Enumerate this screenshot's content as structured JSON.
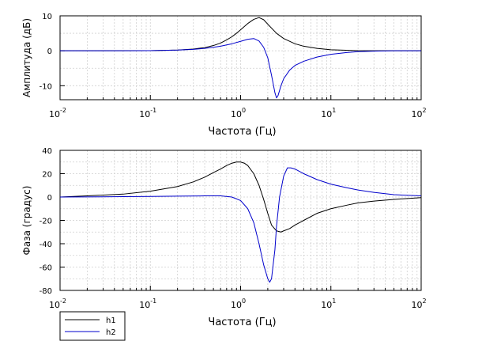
{
  "chart_data": [
    {
      "type": "line",
      "xscale": "log",
      "xlim": [
        0.01,
        100
      ],
      "ylim": [
        -14,
        10
      ],
      "xlabel": "Частота (Гц)",
      "ylabel": "Амплитуда (дБ)",
      "grid": true,
      "xticks": [
        {
          "value": 0.01,
          "base": "10",
          "exp": "-2"
        },
        {
          "value": 0.1,
          "base": "10",
          "exp": "-1"
        },
        {
          "value": 1,
          "base": "10",
          "exp": "0"
        },
        {
          "value": 10,
          "base": "10",
          "exp": "1"
        },
        {
          "value": 100,
          "base": "10",
          "exp": "2"
        }
      ],
      "yticks": [
        10,
        0,
        -10
      ],
      "series": [
        {
          "name": "h1",
          "color": "#000000",
          "points": [
            [
              0.01,
              0
            ],
            [
              0.03,
              0
            ],
            [
              0.1,
              0.05
            ],
            [
              0.2,
              0.2
            ],
            [
              0.3,
              0.5
            ],
            [
              0.4,
              0.9
            ],
            [
              0.5,
              1.5
            ],
            [
              0.6,
              2.2
            ],
            [
              0.7,
              3.1
            ],
            [
              0.8,
              4.0
            ],
            [
              0.9,
              5.0
            ],
            [
              1.0,
              6.0
            ],
            [
              1.2,
              7.8
            ],
            [
              1.4,
              9.0
            ],
            [
              1.6,
              9.5
            ],
            [
              1.8,
              8.9
            ],
            [
              2.0,
              7.6
            ],
            [
              2.5,
              5.0
            ],
            [
              3.0,
              3.5
            ],
            [
              4.0,
              2.0
            ],
            [
              5.0,
              1.3
            ],
            [
              7.0,
              0.7
            ],
            [
              10,
              0.3
            ],
            [
              20,
              0.05
            ],
            [
              50,
              0
            ],
            [
              100,
              0
            ]
          ]
        },
        {
          "name": "h2",
          "color": "#0000cc",
          "points": [
            [
              0.01,
              0
            ],
            [
              0.05,
              0
            ],
            [
              0.1,
              0.05
            ],
            [
              0.2,
              0.2
            ],
            [
              0.3,
              0.4
            ],
            [
              0.4,
              0.7
            ],
            [
              0.5,
              1.0
            ],
            [
              0.6,
              1.3
            ],
            [
              0.8,
              2.0
            ],
            [
              1.0,
              2.7
            ],
            [
              1.2,
              3.3
            ],
            [
              1.4,
              3.5
            ],
            [
              1.6,
              2.8
            ],
            [
              1.8,
              1.0
            ],
            [
              2.0,
              -2.0
            ],
            [
              2.2,
              -7.0
            ],
            [
              2.4,
              -12.0
            ],
            [
              2.5,
              -13.5
            ],
            [
              2.6,
              -12.8
            ],
            [
              2.8,
              -10.0
            ],
            [
              3.0,
              -8.0
            ],
            [
              3.5,
              -5.5
            ],
            [
              4.0,
              -4.2
            ],
            [
              5.0,
              -3.0
            ],
            [
              7.0,
              -1.8
            ],
            [
              10,
              -1.0
            ],
            [
              15,
              -0.5
            ],
            [
              20,
              -0.25
            ],
            [
              30,
              -0.1
            ],
            [
              50,
              0
            ],
            [
              100,
              0
            ]
          ]
        }
      ]
    },
    {
      "type": "line",
      "xscale": "log",
      "xlim": [
        0.01,
        100
      ],
      "ylim": [
        -80,
        40
      ],
      "xlabel": "Частота (Гц)",
      "ylabel": "Фаза (градус)",
      "grid": true,
      "xticks": [
        {
          "value": 0.01,
          "base": "10",
          "exp": "-2"
        },
        {
          "value": 0.1,
          "base": "10",
          "exp": "-1"
        },
        {
          "value": 1,
          "base": "10",
          "exp": "0"
        },
        {
          "value": 10,
          "base": "10",
          "exp": "1"
        },
        {
          "value": 100,
          "base": "10",
          "exp": "2"
        }
      ],
      "yticks": [
        40,
        20,
        0,
        -20,
        -40,
        -60,
        -80
      ],
      "legend": {
        "position": "bottom-left",
        "entries": [
          "h1",
          "h2"
        ]
      },
      "series": [
        {
          "name": "h1",
          "color": "#000000",
          "points": [
            [
              0.01,
              0
            ],
            [
              0.02,
              1
            ],
            [
              0.05,
              2.5
            ],
            [
              0.1,
              5
            ],
            [
              0.2,
              9
            ],
            [
              0.3,
              13
            ],
            [
              0.4,
              17
            ],
            [
              0.5,
              21
            ],
            [
              0.6,
              24
            ],
            [
              0.7,
              27
            ],
            [
              0.8,
              29
            ],
            [
              0.9,
              30
            ],
            [
              1.0,
              30
            ],
            [
              1.1,
              29
            ],
            [
              1.2,
              27
            ],
            [
              1.4,
              20
            ],
            [
              1.6,
              10
            ],
            [
              1.8,
              -2
            ],
            [
              2.0,
              -14
            ],
            [
              2.2,
              -24
            ],
            [
              2.5,
              -29
            ],
            [
              2.8,
              -30
            ],
            [
              3.0,
              -29
            ],
            [
              3.5,
              -27
            ],
            [
              4.0,
              -24
            ],
            [
              5.0,
              -20
            ],
            [
              7.0,
              -14
            ],
            [
              10,
              -10
            ],
            [
              15,
              -7
            ],
            [
              20,
              -5
            ],
            [
              30,
              -3.5
            ],
            [
              50,
              -2
            ],
            [
              100,
              -0.5
            ]
          ]
        },
        {
          "name": "h2",
          "color": "#0000cc",
          "points": [
            [
              0.01,
              0
            ],
            [
              0.05,
              0.3
            ],
            [
              0.1,
              0.5
            ],
            [
              0.2,
              0.8
            ],
            [
              0.4,
              1
            ],
            [
              0.6,
              1
            ],
            [
              0.8,
              0
            ],
            [
              1.0,
              -3
            ],
            [
              1.2,
              -10
            ],
            [
              1.4,
              -22
            ],
            [
              1.6,
              -40
            ],
            [
              1.8,
              -58
            ],
            [
              2.0,
              -70
            ],
            [
              2.1,
              -73
            ],
            [
              2.2,
              -70
            ],
            [
              2.4,
              -45
            ],
            [
              2.5,
              -25
            ],
            [
              2.7,
              0
            ],
            [
              3.0,
              18
            ],
            [
              3.3,
              25
            ],
            [
              3.6,
              25
            ],
            [
              4.0,
              24
            ],
            [
              5.0,
              20
            ],
            [
              7.0,
              15
            ],
            [
              10,
              11
            ],
            [
              15,
              8
            ],
            [
              20,
              6
            ],
            [
              30,
              4
            ],
            [
              50,
              2
            ],
            [
              100,
              1
            ]
          ]
        }
      ]
    }
  ]
}
